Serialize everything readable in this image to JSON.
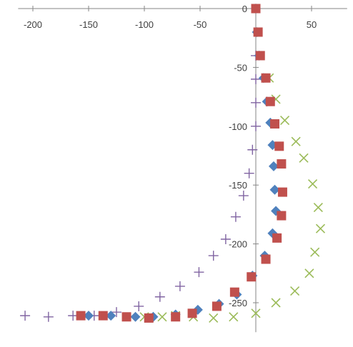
{
  "chart_data": {
    "type": "scatter",
    "xlim": [
      -210,
      80
    ],
    "ylim": [
      -275,
      0
    ],
    "x_ticks": [
      -200,
      -150,
      -100,
      -50,
      0,
      50
    ],
    "y_ticks": [
      -50,
      -100,
      -150,
      -200,
      -250
    ],
    "origin_label": "0",
    "tick_labels_x": [
      "-200",
      "-150",
      "-100",
      "-50",
      "0",
      "50"
    ],
    "tick_labels_y": [
      "-50",
      "-100",
      "-150",
      "-200",
      "-250"
    ],
    "x_tick_labels_position": "top",
    "grid": false,
    "legend": "none",
    "series": [
      {
        "marker": "diamond",
        "color": "#4f81bd",
        "points": [
          [
            0,
            0
          ],
          [
            1,
            -20
          ],
          [
            3,
            -40
          ],
          [
            7,
            -59
          ],
          [
            10,
            -79
          ],
          [
            13,
            -97
          ],
          [
            15,
            -116
          ],
          [
            16,
            -134
          ],
          [
            17,
            -154
          ],
          [
            18,
            -172
          ],
          [
            15,
            -191
          ],
          [
            8,
            -210
          ],
          [
            -3,
            -227
          ],
          [
            -17,
            -243
          ],
          [
            -33,
            -251
          ],
          [
            -52,
            -256
          ],
          [
            -72,
            -260
          ],
          [
            -92,
            -262
          ],
          [
            -108,
            -262
          ],
          [
            -130,
            -261
          ],
          [
            -150,
            -261
          ]
        ]
      },
      {
        "marker": "square",
        "color": "#c0504d",
        "points": [
          [
            0,
            0
          ],
          [
            2,
            -20
          ],
          [
            4,
            -40
          ],
          [
            9,
            -59
          ],
          [
            13,
            -79
          ],
          [
            17,
            -98
          ],
          [
            21,
            -117
          ],
          [
            23,
            -132
          ],
          [
            24,
            -156
          ],
          [
            23,
            -176
          ],
          [
            19,
            -195
          ],
          [
            9,
            -213
          ],
          [
            -4,
            -228
          ],
          [
            -19,
            -241
          ],
          [
            -35,
            -253
          ],
          [
            -57,
            -259
          ],
          [
            -72,
            -262
          ],
          [
            -96,
            -263
          ],
          [
            -116,
            -262
          ],
          [
            -137,
            -261
          ],
          [
            -157,
            -261
          ]
        ]
      },
      {
        "marker": "x",
        "color": "#9bbb59",
        "points": [
          [
            12,
            -59
          ],
          [
            18,
            -77
          ],
          [
            26,
            -95
          ],
          [
            36,
            -113
          ],
          [
            43,
            -127
          ],
          [
            51,
            -149
          ],
          [
            56,
            -169
          ],
          [
            58,
            -187
          ],
          [
            53,
            -207
          ],
          [
            48,
            -225
          ],
          [
            35,
            -240
          ],
          [
            18,
            -250
          ],
          [
            0,
            -259
          ],
          [
            -20,
            -262
          ],
          [
            -38,
            -263
          ],
          [
            -56,
            -262
          ],
          [
            -72,
            -261
          ],
          [
            -84,
            -262
          ],
          [
            -100,
            -262
          ]
        ]
      },
      {
        "marker": "plus",
        "color": "#8064a2",
        "points": [
          [
            0,
            -40
          ],
          [
            0,
            -60
          ],
          [
            0,
            -80
          ],
          [
            0,
            -100
          ],
          [
            -3,
            -120
          ],
          [
            -6,
            -140
          ],
          [
            -11,
            -159
          ],
          [
            -18,
            -177
          ],
          [
            -27,
            -196
          ],
          [
            -38,
            -210
          ],
          [
            -51,
            -224
          ],
          [
            -68,
            -236
          ],
          [
            -86,
            -245
          ],
          [
            -105,
            -253
          ],
          [
            -125,
            -258
          ],
          [
            -145,
            -261
          ],
          [
            -164,
            -261
          ],
          [
            -186,
            -262
          ],
          [
            -207,
            -261
          ]
        ]
      }
    ]
  }
}
